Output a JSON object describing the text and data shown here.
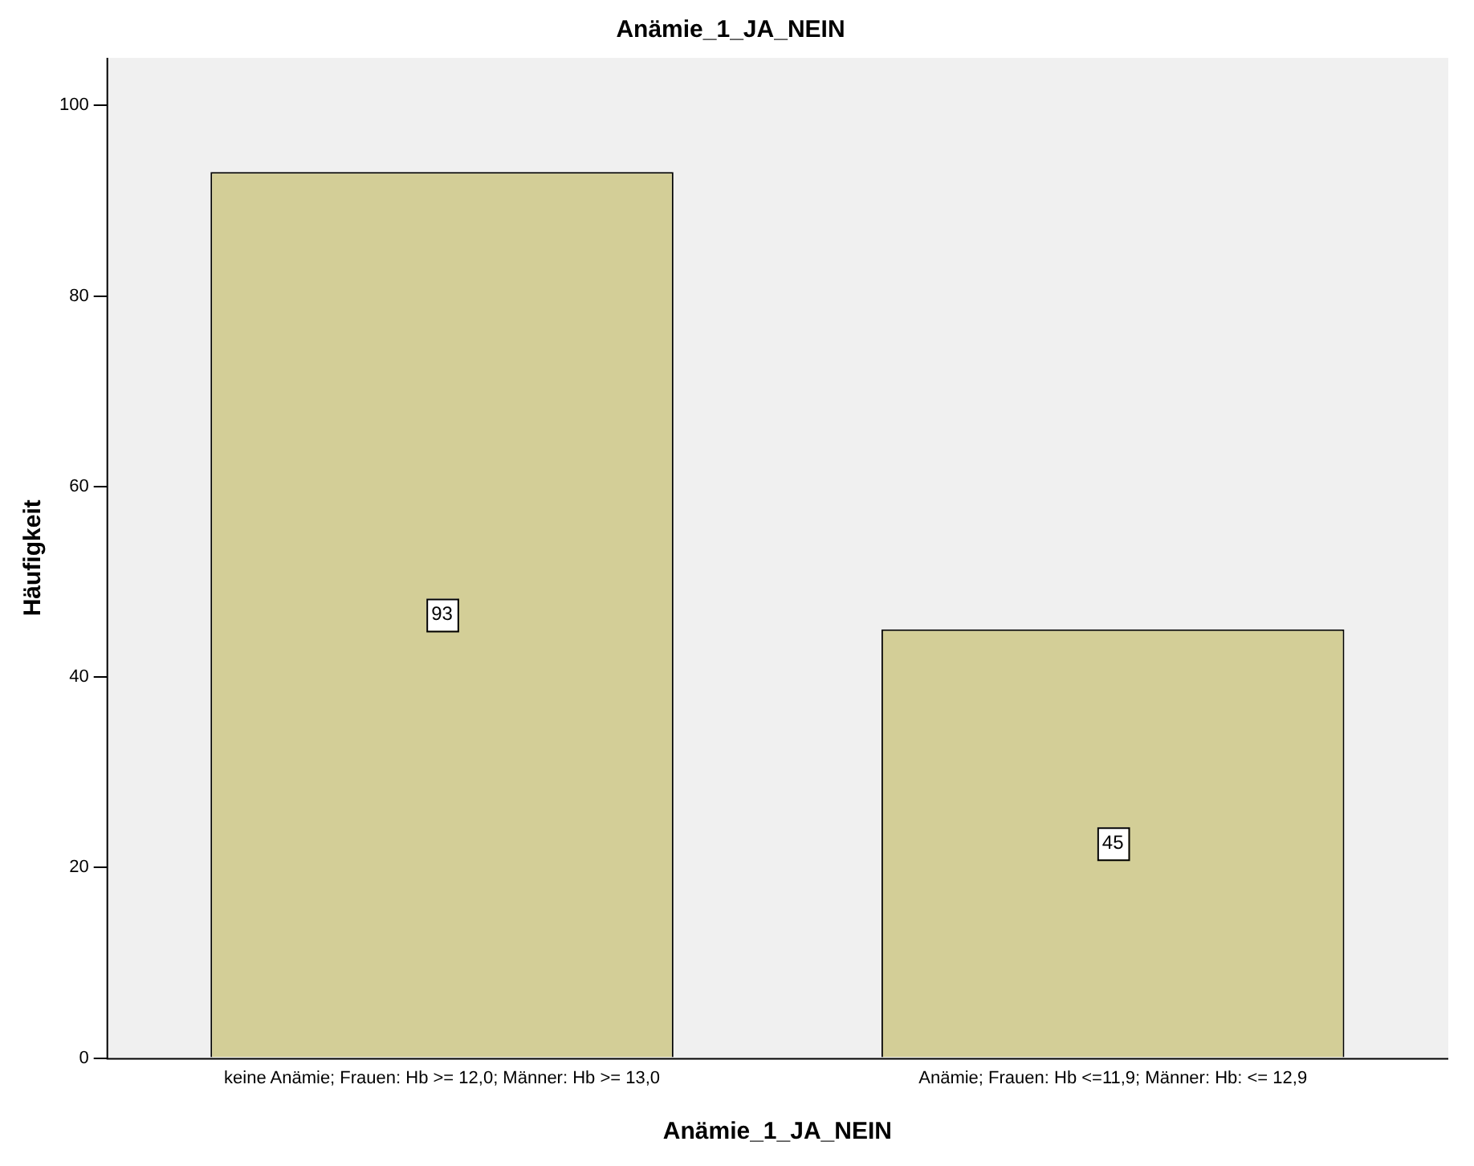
{
  "chart_data": {
    "type": "bar",
    "title": "Anämie_1_JA_NEIN",
    "xlabel": "Anämie_1_JA_NEIN",
    "ylabel": "Häufigkeit",
    "categories": [
      "keine Anämie; Frauen: Hb >= 12,0; Männer: Hb >= 13,0",
      "Anämie; Frauen: Hb <=11,9; Männer: Hb: <= 12,9"
    ],
    "values": [
      93,
      45
    ],
    "color": "#d3ce97",
    "ylim": [
      0,
      105
    ],
    "yticks": [
      0,
      20,
      40,
      60,
      80,
      100
    ],
    "grid": false,
    "legend": false,
    "data_labels": true
  }
}
